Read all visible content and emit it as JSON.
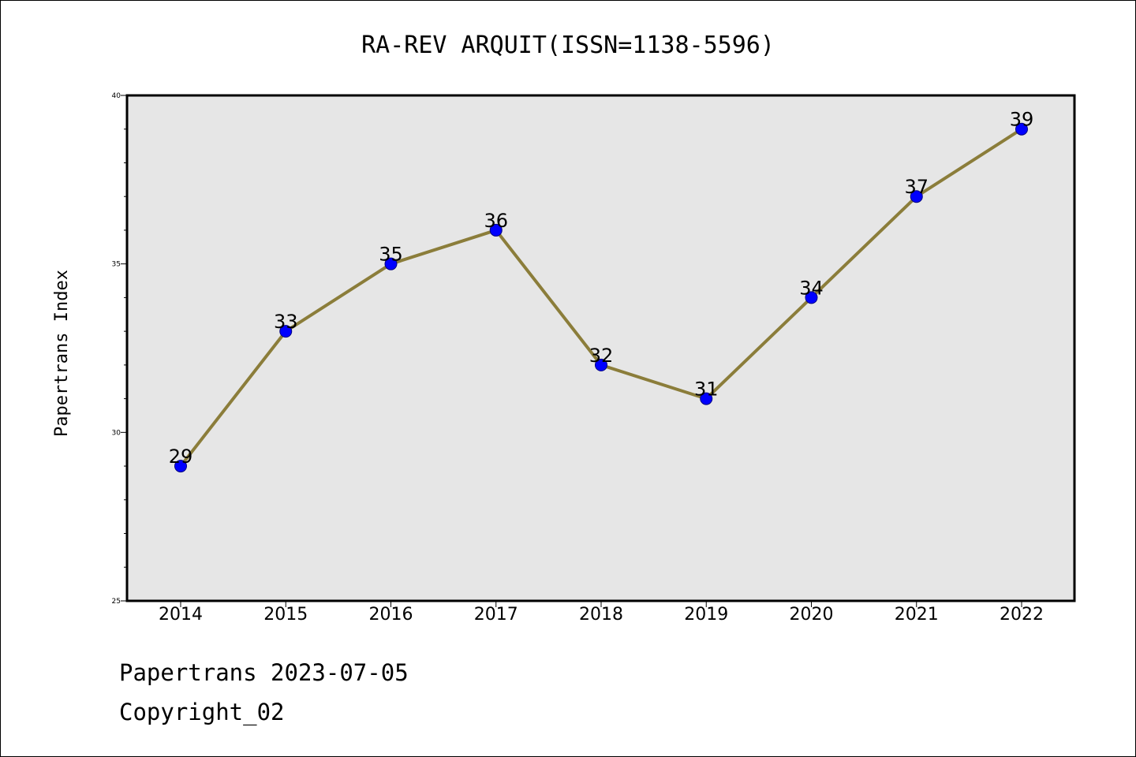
{
  "chart_data": {
    "type": "line",
    "title": "RA-REV ARQUIT(ISSN=1138-5596)",
    "xlabel": "",
    "ylabel": "Papertrans Index",
    "categories": [
      "2014",
      "2015",
      "2016",
      "2017",
      "2018",
      "2019",
      "2020",
      "2021",
      "2022"
    ],
    "series": [
      {
        "values": [
          29,
          33,
          35,
          36,
          32,
          31,
          34,
          37,
          39
        ]
      }
    ],
    "data_labels": [
      "29",
      "33",
      "35",
      "36",
      "32",
      "31",
      "34",
      "37",
      "39"
    ],
    "ylim": [
      25,
      40
    ],
    "y_major_ticks": [
      25,
      30,
      35,
      40
    ],
    "y_minor_step": 1,
    "grid": false,
    "colors": {
      "line": "#8b7d3a",
      "marker": "#0000ff",
      "marker_edge": "#000080",
      "plot_background": "#e6e6e6"
    }
  },
  "footer": {
    "line1": "Papertrans 2023-07-05",
    "line2": "Copyright_02"
  }
}
